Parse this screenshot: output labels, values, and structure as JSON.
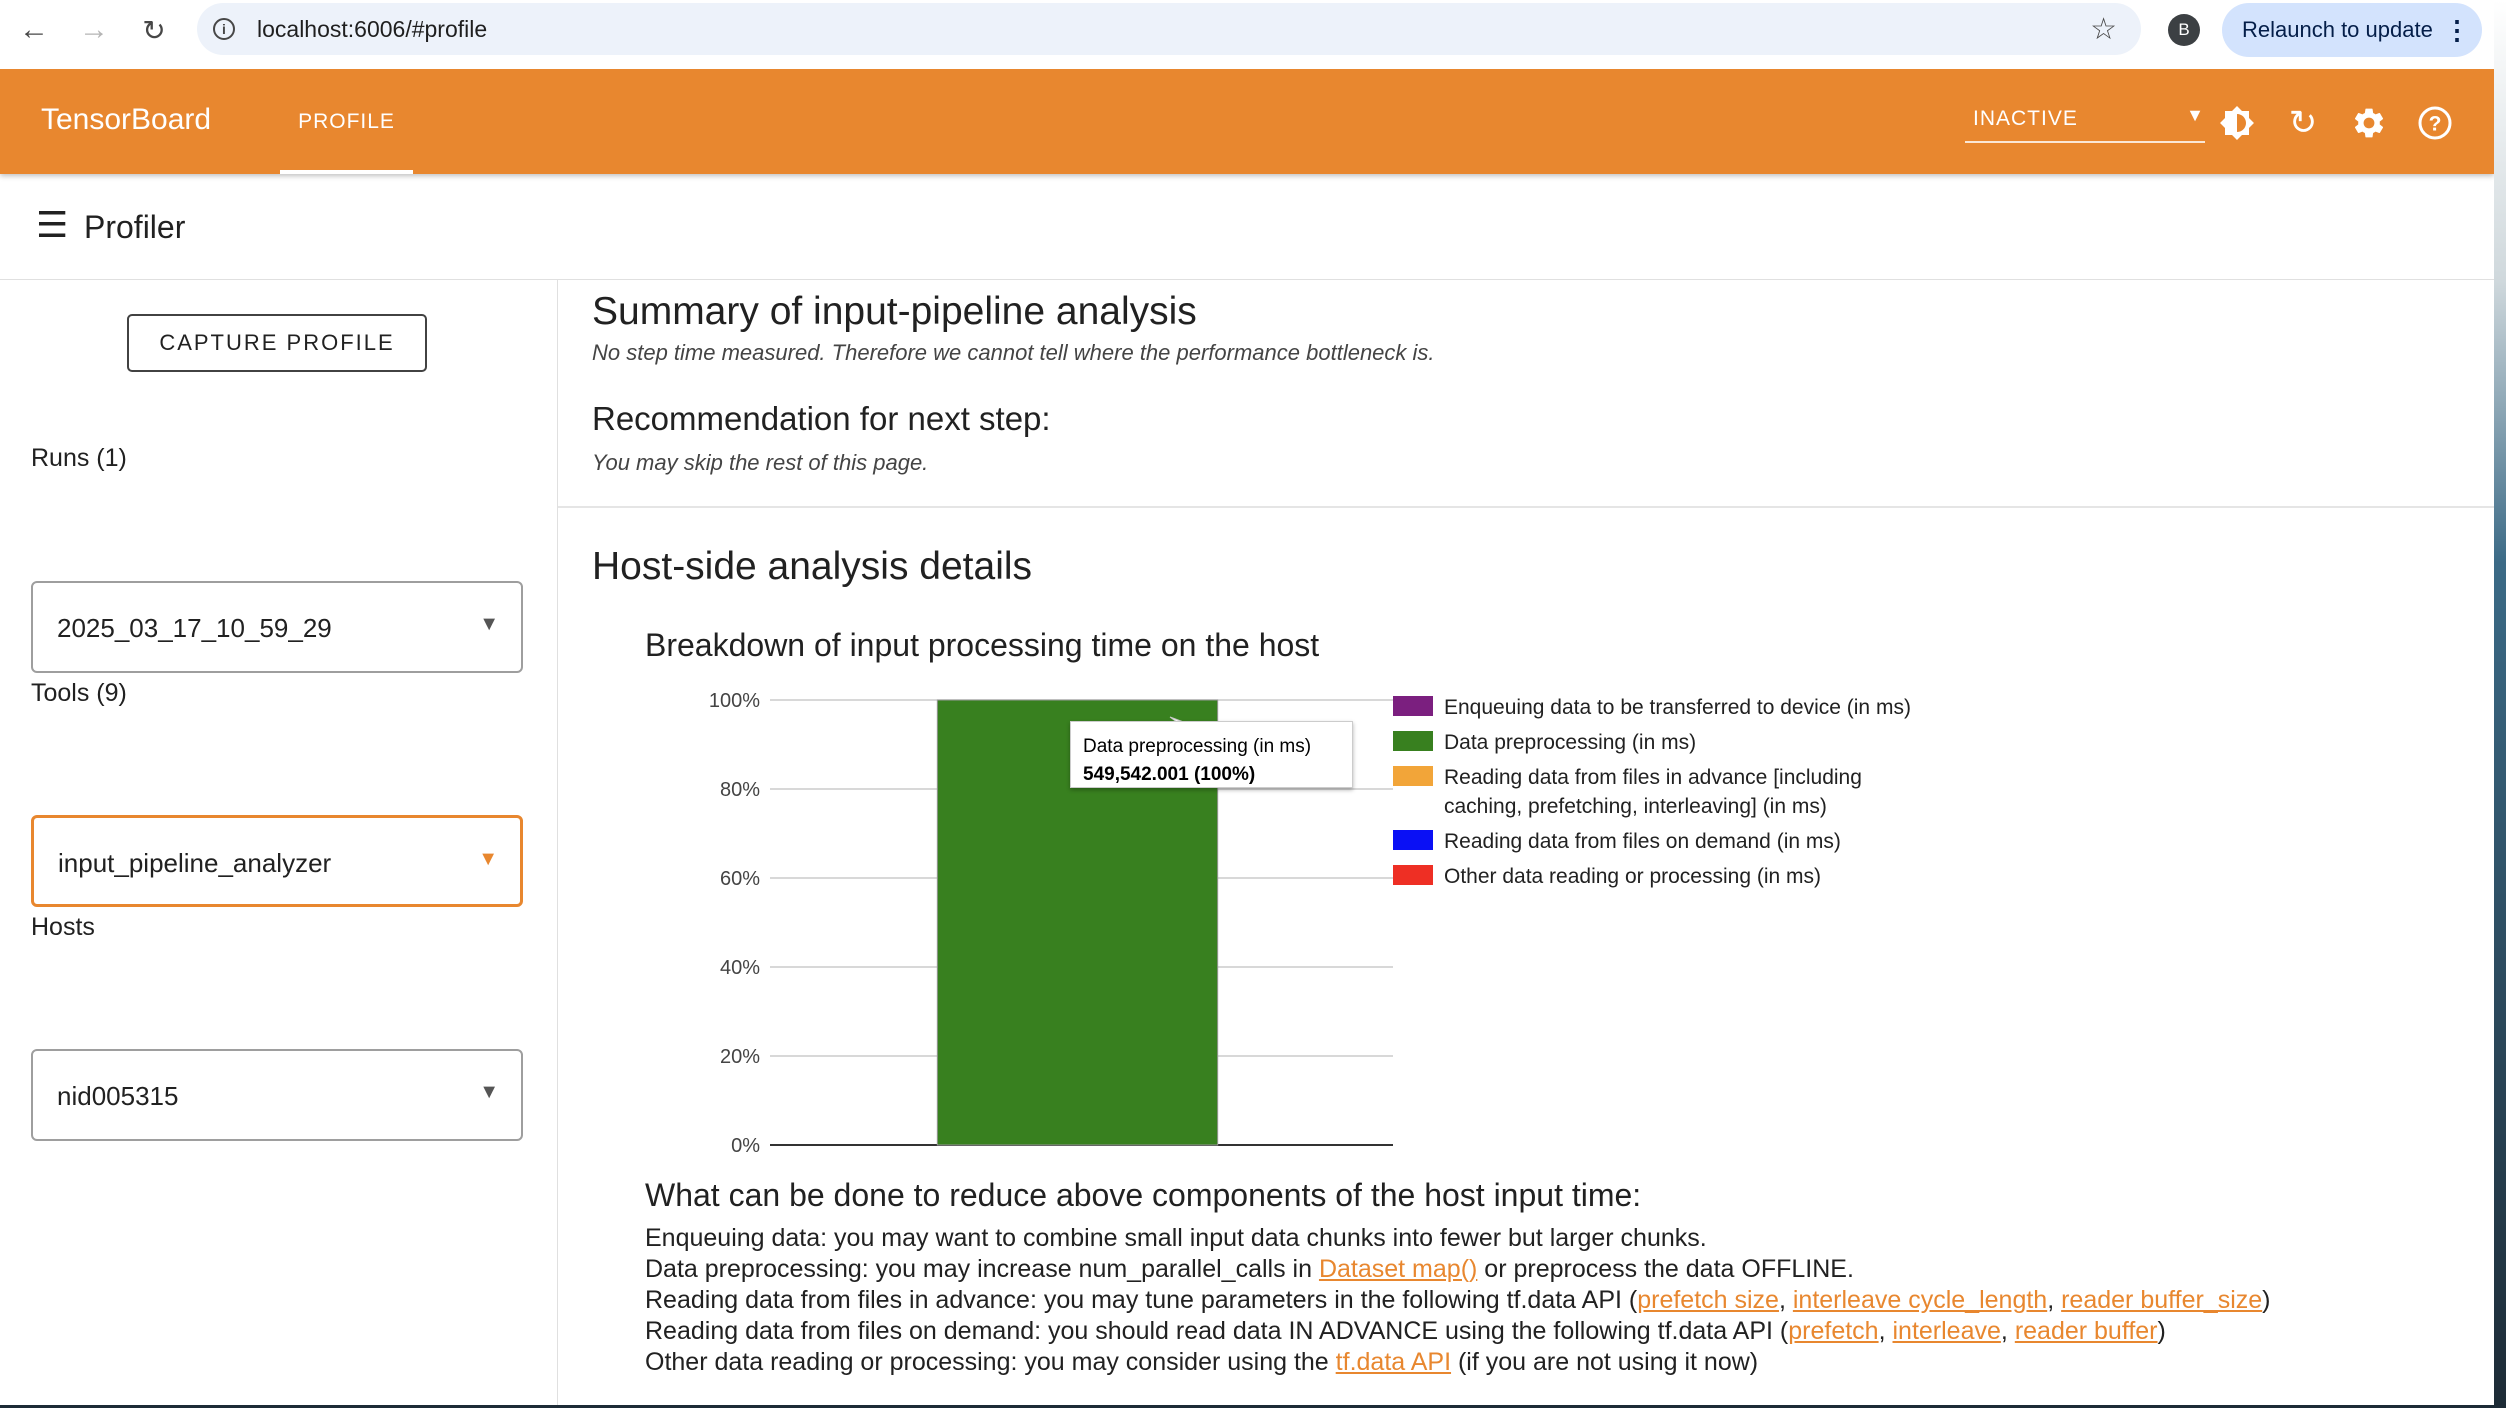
{
  "browser": {
    "url": "localhost:6006/#profile",
    "avatar_letter": "B",
    "relaunch_label": "Relaunch to update"
  },
  "header": {
    "logo": "TensorBoard",
    "tab": "PROFILE",
    "status": "INACTIVE"
  },
  "toolbar": {
    "title": "Profiler"
  },
  "sidebar": {
    "capture_label": "CAPTURE PROFILE",
    "runs_label": "Runs (1)",
    "runs_value": "2025_03_17_10_59_29",
    "tools_label": "Tools (9)",
    "tools_value": "input_pipeline_analyzer",
    "hosts_label": "Hosts",
    "hosts_value": "nid005315"
  },
  "summary": {
    "title": "Summary of input-pipeline analysis",
    "text": "No step time measured. Therefore we cannot tell where the performance bottleneck is.",
    "rec_title": "Recommendation for next step:",
    "rec_text": "You may skip the rest of this page."
  },
  "host": {
    "title": "Host-side analysis details"
  },
  "chart_data": {
    "type": "bar",
    "title": "Breakdown of input processing time on the host",
    "stacked": true,
    "percent": true,
    "categories": [
      ""
    ],
    "yticks": [
      "0%",
      "20%",
      "40%",
      "60%",
      "80%",
      "100%"
    ],
    "ylim": [
      0,
      100
    ],
    "legend_position": "right",
    "series": [
      {
        "name": "Enqueuing data to be transferred to device (in ms)",
        "color": "#7b1f7f",
        "values": [
          0
        ]
      },
      {
        "name": "Data preprocessing (in ms)",
        "color": "#38801f",
        "values": [
          100
        ]
      },
      {
        "name": "Reading data from files in advance [including caching, prefetching, interleaving] (in ms)",
        "color": "#f2a539",
        "values": [
          0
        ]
      },
      {
        "name": "Reading data from files on demand (in ms)",
        "color": "#0a10f5",
        "values": [
          0
        ]
      },
      {
        "name": "Other data reading or processing (in ms)",
        "color": "#ee2f24",
        "values": [
          0
        ]
      }
    ],
    "tooltip": {
      "label": "Data preprocessing (in ms)",
      "value": "549,542.001 (100%)"
    }
  },
  "legend_lines": {
    "l1": "Enqueuing data to be transferred to device (in ms)",
    "l2": "Data preprocessing (in ms)",
    "l3a": "Reading data from files in advance [including",
    "l3b": "caching, prefetching, interleaving] (in ms)",
    "l4": "Reading data from files on demand (in ms)",
    "l5": "Other data reading or processing (in ms)"
  },
  "reduce": {
    "title": "What can be done to reduce above components of the host input time:",
    "line1": "Enqueuing data: you may want to combine small input data chunks into fewer but larger chunks.",
    "line2_pre": "Data preprocessing: you may increase num_parallel_calls in ",
    "line2_link": "Dataset map()",
    "line2_post": " or preprocess the data OFFLINE.",
    "line3_pre": "Reading data from files in advance: you may tune parameters in the following tf.data API (",
    "line3_link1": "prefetch size",
    "line3_link2": "interleave cycle_length",
    "line3_link3": "reader buffer_size",
    "line3_post": ")",
    "line4_pre": "Reading data from files on demand: you should read data IN ADVANCE using the following tf.data API (",
    "line4_link1": "prefetch",
    "line4_link2": "interleave",
    "line4_link3": "reader buffer",
    "line4_post": ")",
    "line5_pre": "Other data reading or processing: you may consider using the ",
    "line5_link": "tf.data API",
    "line5_post": " (if you are not using it now)",
    "sep": ", "
  }
}
